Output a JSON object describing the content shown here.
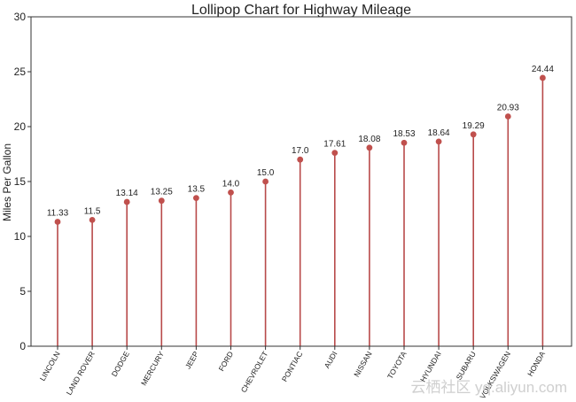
{
  "chart_data": {
    "type": "lollipop",
    "title": "Lollipop Chart for Highway Mileage",
    "xlabel": "",
    "ylabel": "Miles Per Gallon",
    "ylim": [
      0,
      30
    ],
    "yticks": [
      "0",
      "5",
      "10",
      "15",
      "20",
      "25",
      "30"
    ],
    "grid": false,
    "categories": [
      "LINCOLN",
      "LAND ROVER",
      "DODGE",
      "MERCURY",
      "JEEP",
      "FORD",
      "CHEVROLET",
      "PONTIAC",
      "AUDI",
      "NISSAN",
      "TOYOTA",
      "HYUNDAI",
      "SUBARU",
      "VOLKSWAGEN",
      "HONDA"
    ],
    "values": [
      11.33,
      11.5,
      13.14,
      13.25,
      13.5,
      14.0,
      15.0,
      17.0,
      17.61,
      18.08,
      18.53,
      18.64,
      19.29,
      20.93,
      24.44
    ],
    "value_labels": [
      "11.33",
      "11.5",
      "13.14",
      "13.25",
      "13.5",
      "14.0",
      "15.0",
      "17.0",
      "17.61",
      "18.08",
      "18.53",
      "18.64",
      "19.29",
      "20.93",
      "24.44"
    ],
    "colors": {
      "stem": "#b84a4a",
      "marker": "#c0504d"
    }
  },
  "watermark": "云栖社区 yq.aliyun.com"
}
